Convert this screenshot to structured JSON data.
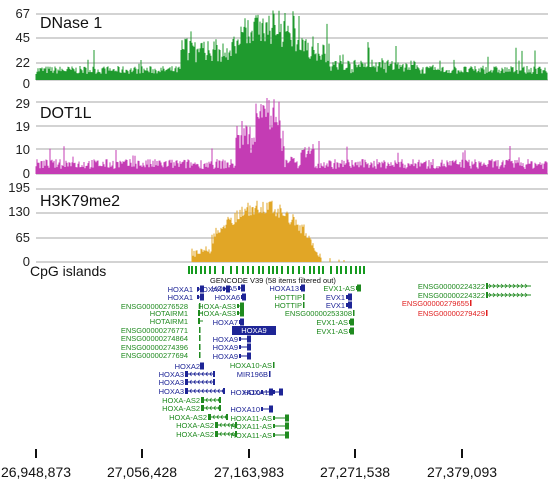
{
  "tracks": [
    {
      "name": "DNase 1",
      "ticks": [
        "67",
        "45",
        "22",
        "0"
      ],
      "color": "#1f9a2e"
    },
    {
      "name": "DOT1L",
      "ticks": [
        "29",
        "19",
        "10",
        "0"
      ],
      "color": "#c43cb4"
    },
    {
      "name": "H3K79me2",
      "ticks": [
        "195",
        "130",
        "65",
        "0"
      ],
      "color": "#e1a626"
    }
  ],
  "cpg": {
    "name": "CpG islands",
    "color": "#159a1f"
  },
  "gencode": {
    "label": "GENCODE V39 (58 items filtered out)"
  },
  "genes": [
    {
      "name": "HOXA1",
      "color": "#1e2596",
      "glyph": "box"
    },
    {
      "name": "HOXA1",
      "color": "#1e2596",
      "glyph": "box"
    },
    {
      "name": "ENSG00000276528",
      "color": "#1f8a1f",
      "glyph": "bar"
    },
    {
      "name": "HOTAIRM1",
      "color": "#1f8a1f",
      "glyph": "arrow"
    },
    {
      "name": "HOTAIRM1",
      "color": "#1f8a1f",
      "glyph": "arrow"
    },
    {
      "name": "ENSG00000276771",
      "color": "#1f8a1f",
      "glyph": "bar"
    },
    {
      "name": "ENSG00000274864",
      "color": "#1f8a1f",
      "glyph": "bar"
    },
    {
      "name": "ENSG00000274396",
      "color": "#1f8a1f",
      "glyph": "bar"
    },
    {
      "name": "ENSG00000277694",
      "color": "#1f8a1f",
      "glyph": "bar"
    },
    {
      "name": "HOXA2",
      "color": "#1e2596",
      "glyph": "box"
    },
    {
      "name": "HOXA3",
      "color": "#1e2596",
      "glyph": "line"
    },
    {
      "name": "HOXA3",
      "color": "#1e2596",
      "glyph": "line"
    },
    {
      "name": "HOXA3",
      "color": "#1e2596",
      "glyph": "line"
    },
    {
      "name": "HOXA-AS2",
      "color": "#1f8a1f",
      "glyph": "line"
    },
    {
      "name": "HOXA-AS2",
      "color": "#1f8a1f",
      "glyph": "line"
    },
    {
      "name": "HOXA-AS2",
      "color": "#1f8a1f",
      "glyph": "line"
    },
    {
      "name": "HOXA-AS2",
      "color": "#1f8a1f",
      "glyph": "line"
    },
    {
      "name": "HOXA-AS2",
      "color": "#1f8a1f",
      "glyph": "line"
    },
    {
      "name": "HOXA4",
      "color": "#1e2596",
      "glyph": "box"
    },
    {
      "name": "HOXA5",
      "color": "#1e2596",
      "glyph": "box"
    },
    {
      "name": "HOXA6",
      "color": "#1e2596",
      "glyph": "box"
    },
    {
      "name": "HOXA-AS3",
      "color": "#1f8a1f",
      "glyph": "box"
    },
    {
      "name": "HOXA-AS3",
      "color": "#1f8a1f",
      "glyph": "box"
    },
    {
      "name": "HOXA7",
      "color": "#1e2596",
      "glyph": "box"
    },
    {
      "name": "HOXA9",
      "color": "#ffffff",
      "glyph": "highlight"
    },
    {
      "name": "HOXA9",
      "color": "#1e2596",
      "glyph": "box"
    },
    {
      "name": "HOXA9",
      "color": "#1e2596",
      "glyph": "box"
    },
    {
      "name": "HOXA9",
      "color": "#1e2596",
      "glyph": "box"
    },
    {
      "name": "HOXA10-AS",
      "color": "#1f8a1f",
      "glyph": "bar"
    },
    {
      "name": "MIR196B",
      "color": "#1e2596",
      "glyph": "bar"
    },
    {
      "name": "HOXA10",
      "color": "#1e2596",
      "glyph": "box"
    },
    {
      "name": "HOXA10",
      "color": "#1e2596",
      "glyph": "box"
    },
    {
      "name": "HOXA13",
      "color": "#1e2596",
      "glyph": "box"
    },
    {
      "name": "HOTTIP",
      "color": "#1f8a1f",
      "glyph": "bar"
    },
    {
      "name": "HOTTIP",
      "color": "#1f8a1f",
      "glyph": "bar"
    },
    {
      "name": "ENSG00000253308",
      "color": "#1f8a1f",
      "glyph": "bar"
    },
    {
      "name": "HOXA11",
      "color": "#1e2596",
      "glyph": "box"
    },
    {
      "name": "HOXA11-AS",
      "color": "#1f8a1f",
      "glyph": "box"
    },
    {
      "name": "HOXA11-AS",
      "color": "#1f8a1f",
      "glyph": "box"
    },
    {
      "name": "HOXA11-AS",
      "color": "#1f8a1f",
      "glyph": "box"
    },
    {
      "name": "EVX1-AS",
      "color": "#1f8a1f",
      "glyph": "box"
    },
    {
      "name": "EVX1",
      "color": "#1e2596",
      "glyph": "box"
    },
    {
      "name": "EVX1",
      "color": "#1e2596",
      "glyph": "box"
    },
    {
      "name": "EVX1-AS",
      "color": "#1f8a1f",
      "glyph": "box"
    },
    {
      "name": "EVX1-AS",
      "color": "#1f8a1f",
      "glyph": "box"
    },
    {
      "name": "ENSG00000224322",
      "color": "#1f8a1f",
      "glyph": "arrow"
    },
    {
      "name": "ENSG00000224322",
      "color": "#1f8a1f",
      "glyph": "arrow"
    },
    {
      "name": "ENSG00000279655",
      "color": "#e02020",
      "glyph": "bar"
    },
    {
      "name": "ENSG00000279429",
      "color": "#e02020",
      "glyph": "bar"
    }
  ],
  "axis": {
    "ticks": [
      "26,948,873",
      "27,056,428",
      "27,163,983",
      "27,271,538",
      "27,379,093"
    ]
  }
}
